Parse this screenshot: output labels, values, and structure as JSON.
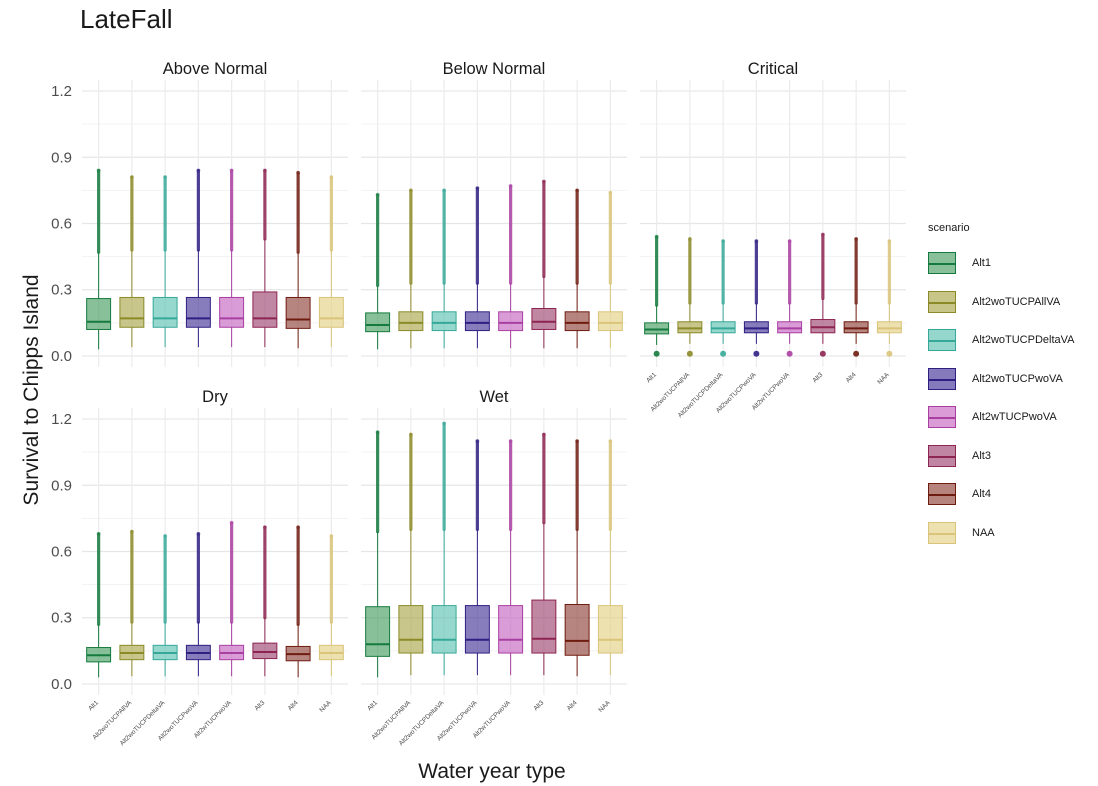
{
  "chart_data": {
    "type": "box",
    "title": "LateFall",
    "xlabel": "Water year type",
    "ylabel": "Survival to Chipps Island",
    "ylim": [
      -0.05,
      1.25
    ],
    "y_ticks": [
      "0.0",
      "0.3",
      "0.6",
      "0.9",
      "1.2"
    ],
    "y_tick_values": [
      0,
      0.3,
      0.6,
      0.9,
      1.2
    ],
    "grid": true,
    "legend_title": "scenario",
    "legend_placement": "right",
    "categories": [
      "Alt1",
      "Alt2woTUCPAllVA",
      "Alt2woTUCPDeltaVA",
      "Alt2woTUCPwoVA",
      "Alt2wTUCPwoVA",
      "Alt3",
      "Alt4",
      "NAA"
    ],
    "scenario_colors": {
      "fill": [
        "#3f9a5c",
        "#a7a342",
        "#57c0b0",
        "#3d2d94",
        "#c460be",
        "#9a3d6b",
        "#8a3a30",
        "#e3cf7f"
      ],
      "line": [
        "#157a3d",
        "#8b8a27",
        "#36a898",
        "#2e1f82",
        "#aa3fa2",
        "#8d2451",
        "#6f1c10",
        "#d9c479"
      ]
    },
    "panels": [
      {
        "name": "Above Normal",
        "q1": [
          0.12,
          0.13,
          0.13,
          0.13,
          0.13,
          0.13,
          0.125,
          0.13
        ],
        "median": [
          0.155,
          0.17,
          0.17,
          0.17,
          0.17,
          0.17,
          0.165,
          0.17
        ],
        "q3": [
          0.26,
          0.265,
          0.265,
          0.265,
          0.265,
          0.29,
          0.265,
          0.265
        ],
        "whisker_low": [
          0.03,
          0.04,
          0.04,
          0.04,
          0.04,
          0.04,
          0.035,
          0.04
        ],
        "whisker_high": [
          0.47,
          0.48,
          0.48,
          0.48,
          0.48,
          0.53,
          0.47,
          0.48
        ],
        "outlier_max": [
          0.84,
          0.81,
          0.81,
          0.84,
          0.84,
          0.84,
          0.83,
          0.81
        ],
        "outlier_min": [
          null,
          null,
          null,
          null,
          null,
          null,
          null,
          null
        ]
      },
      {
        "name": "Below Normal",
        "q1": [
          0.11,
          0.115,
          0.115,
          0.115,
          0.115,
          0.12,
          0.115,
          0.115
        ],
        "median": [
          0.14,
          0.15,
          0.15,
          0.15,
          0.15,
          0.155,
          0.15,
          0.15
        ],
        "q3": [
          0.195,
          0.2,
          0.2,
          0.2,
          0.2,
          0.215,
          0.2,
          0.2
        ],
        "whisker_low": [
          0.03,
          0.035,
          0.035,
          0.035,
          0.035,
          0.035,
          0.035,
          0.035
        ],
        "whisker_high": [
          0.32,
          0.33,
          0.33,
          0.33,
          0.33,
          0.36,
          0.33,
          0.33
        ],
        "outlier_max": [
          0.73,
          0.75,
          0.75,
          0.76,
          0.77,
          0.79,
          0.75,
          0.74
        ],
        "outlier_min": [
          null,
          null,
          null,
          null,
          null,
          null,
          null,
          null
        ]
      },
      {
        "name": "Critical",
        "q1": [
          0.1,
          0.105,
          0.105,
          0.105,
          0.105,
          0.105,
          0.105,
          0.105
        ],
        "median": [
          0.12,
          0.125,
          0.125,
          0.125,
          0.125,
          0.13,
          0.125,
          0.125
        ],
        "q3": [
          0.15,
          0.155,
          0.155,
          0.155,
          0.155,
          0.165,
          0.155,
          0.155
        ],
        "whisker_low": [
          0.05,
          0.055,
          0.055,
          0.055,
          0.055,
          0.055,
          0.055,
          0.055
        ],
        "whisker_high": [
          0.23,
          0.24,
          0.24,
          0.24,
          0.24,
          0.26,
          0.24,
          0.24
        ],
        "outlier_max": [
          0.54,
          0.53,
          0.52,
          0.52,
          0.52,
          0.55,
          0.53,
          0.52
        ],
        "outlier_min": [
          0.01,
          0.01,
          0.01,
          0.01,
          0.01,
          0.01,
          0.01,
          0.01
        ]
      },
      {
        "name": "Dry",
        "q1": [
          0.1,
          0.11,
          0.11,
          0.11,
          0.11,
          0.115,
          0.105,
          0.11
        ],
        "median": [
          0.13,
          0.14,
          0.14,
          0.14,
          0.14,
          0.145,
          0.135,
          0.14
        ],
        "q3": [
          0.165,
          0.175,
          0.175,
          0.175,
          0.175,
          0.185,
          0.17,
          0.175
        ],
        "whisker_low": [
          0.03,
          0.035,
          0.035,
          0.035,
          0.035,
          0.035,
          0.03,
          0.035
        ],
        "whisker_high": [
          0.27,
          0.28,
          0.28,
          0.28,
          0.28,
          0.3,
          0.27,
          0.28
        ],
        "outlier_max": [
          0.68,
          0.69,
          0.67,
          0.68,
          0.73,
          0.71,
          0.71,
          0.67
        ],
        "outlier_min": [
          null,
          null,
          null,
          null,
          null,
          null,
          null,
          null
        ]
      },
      {
        "name": "Wet",
        "q1": [
          0.125,
          0.14,
          0.14,
          0.14,
          0.14,
          0.14,
          0.13,
          0.14
        ],
        "median": [
          0.18,
          0.2,
          0.2,
          0.2,
          0.2,
          0.205,
          0.195,
          0.2
        ],
        "q3": [
          0.35,
          0.355,
          0.355,
          0.355,
          0.355,
          0.38,
          0.36,
          0.355
        ],
        "whisker_low": [
          0.03,
          0.04,
          0.04,
          0.04,
          0.04,
          0.04,
          0.035,
          0.04
        ],
        "whisker_high": [
          0.69,
          0.7,
          0.7,
          0.7,
          0.7,
          0.73,
          0.7,
          0.7
        ],
        "outlier_max": [
          1.14,
          1.13,
          1.18,
          1.1,
          1.1,
          1.13,
          1.1,
          1.1
        ],
        "outlier_min": [
          null,
          null,
          null,
          null,
          null,
          null,
          null,
          null
        ]
      }
    ]
  }
}
